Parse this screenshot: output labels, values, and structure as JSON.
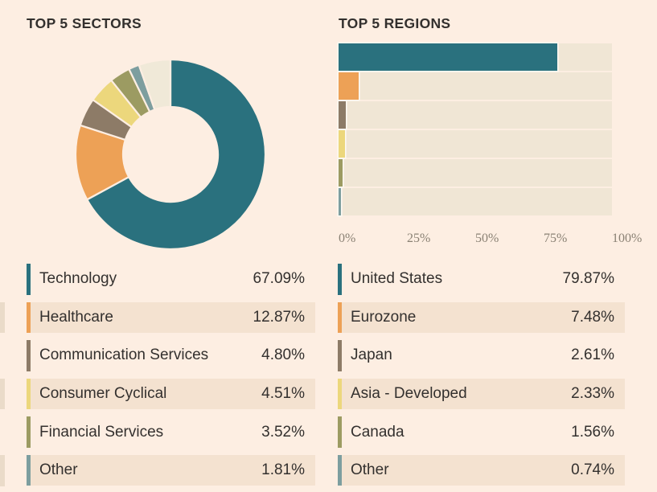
{
  "panel": {
    "background": "#fdeee2",
    "stripe_color": "#f4e2d0",
    "sliver_color": "#eadbc9",
    "track_color": "#f0e6d5",
    "gap_color": "#fcf8f1",
    "text_color": "#33302e",
    "axis_text_color": "#8a8174"
  },
  "sectors": {
    "title": "TOP 5 SECTORS",
    "rows": [
      {
        "label": "Technology",
        "value": "67.09%",
        "color": "#2a717e"
      },
      {
        "label": "Healthcare",
        "value": "12.87%",
        "color": "#eda156"
      },
      {
        "label": "Communication Services",
        "value": "4.80%",
        "color": "#8d7b67"
      },
      {
        "label": "Consumer Cyclical",
        "value": "4.51%",
        "color": "#ecd77c"
      },
      {
        "label": "Financial Services",
        "value": "3.52%",
        "color": "#9c9b62"
      },
      {
        "label": "Other",
        "value": "1.81%",
        "color": "#7d9e9f"
      }
    ]
  },
  "regions": {
    "title": "TOP 5 REGIONS",
    "rows": [
      {
        "label": "United States",
        "value": "79.87%",
        "color": "#2a717e"
      },
      {
        "label": "Eurozone",
        "value": "7.48%",
        "color": "#eda156"
      },
      {
        "label": "Japan",
        "value": "2.61%",
        "color": "#8d7b67"
      },
      {
        "label": "Asia - Developed",
        "value": "2.33%",
        "color": "#ecd77c"
      },
      {
        "label": "Canada",
        "value": "1.56%",
        "color": "#9c9b62"
      },
      {
        "label": "Other",
        "value": "0.74%",
        "color": "#7d9e9f"
      }
    ],
    "axis_ticks": [
      "0%",
      "25%",
      "50%",
      "75%",
      "100%"
    ]
  },
  "chart_data": [
    {
      "type": "pie",
      "variant": "donut",
      "title": "TOP 5 SECTORS",
      "labels": [
        "Technology",
        "Healthcare",
        "Communication Services",
        "Consumer Cyclical",
        "Financial Services",
        "Other",
        ""
      ],
      "values": [
        67.09,
        12.87,
        4.8,
        4.51,
        3.52,
        1.81,
        5.4
      ],
      "colors": [
        "#2a717e",
        "#eda156",
        "#8d7b67",
        "#ecd77c",
        "#9c9b62",
        "#7d9e9f",
        "#f0e9d8"
      ],
      "start_angle_deg": 0,
      "direction": "clockwise",
      "inner_radius_ratio": 0.5,
      "legend_position": "table-below"
    },
    {
      "type": "bar",
      "orientation": "horizontal",
      "title": "TOP 5 REGIONS",
      "categories": [
        "United States",
        "Eurozone",
        "Japan",
        "Asia - Developed",
        "Canada",
        "Other"
      ],
      "values": [
        79.87,
        7.48,
        2.61,
        2.33,
        1.56,
        0.74
      ],
      "colors": [
        "#2a717e",
        "#eda156",
        "#8d7b67",
        "#ecd77c",
        "#9c9b62",
        "#7d9e9f"
      ],
      "xlim": [
        0,
        100
      ],
      "xticks": [
        0,
        25,
        50,
        75,
        100
      ],
      "xtick_labels": [
        "0%",
        "25%",
        "50%",
        "75%",
        "100%"
      ],
      "grid": false,
      "legend_position": "table-below"
    }
  ]
}
